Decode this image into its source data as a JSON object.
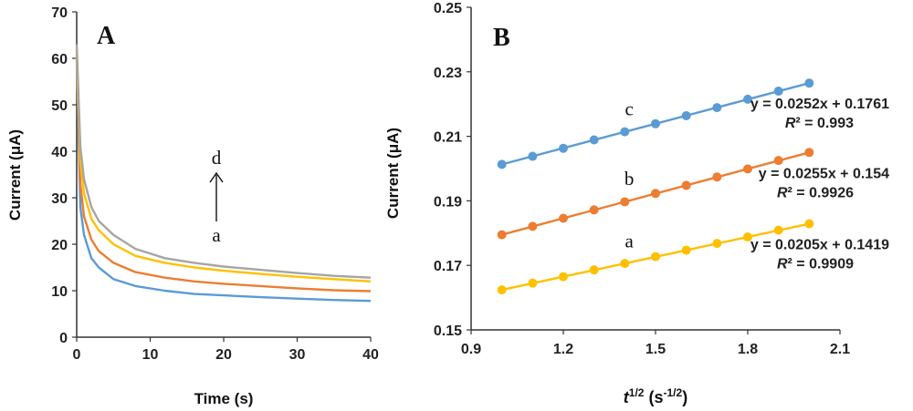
{
  "chart_data": [
    {
      "type": "line",
      "panel_label": "A",
      "xlabel": "Time (s)",
      "ylabel": "Current (μA)",
      "xlim": [
        0,
        40
      ],
      "ylim": [
        0,
        70
      ],
      "xticks": [
        "0",
        "10",
        "20",
        "30",
        "40"
      ],
      "yticks": [
        "0",
        "10",
        "20",
        "30",
        "40",
        "50",
        "60",
        "70"
      ],
      "grid": false,
      "colors": [
        "#5b9bd5",
        "#ed7d31",
        "#ffc000",
        "#a5a5a5"
      ],
      "arrow_labels": {
        "bottom": "a",
        "top": "d"
      },
      "series": [
        {
          "values": [
            [
              0,
              60
            ],
            [
              0.5,
              28
            ],
            [
              1,
              22
            ],
            [
              2,
              17
            ],
            [
              3,
              15
            ],
            [
              5,
              12.5
            ],
            [
              8,
              11
            ],
            [
              12,
              10
            ],
            [
              16,
              9.3
            ],
            [
              20,
              9
            ],
            [
              25,
              8.6
            ],
            [
              30,
              8.3
            ],
            [
              35,
              8
            ],
            [
              40,
              7.8
            ]
          ]
        },
        {
          "values": [
            [
              0,
              61
            ],
            [
              0.5,
              33
            ],
            [
              1,
              26
            ],
            [
              2,
              21
            ],
            [
              3,
              18.5
            ],
            [
              5,
              16
            ],
            [
              8,
              14
            ],
            [
              12,
              12.8
            ],
            [
              16,
              12
            ],
            [
              20,
              11.5
            ],
            [
              25,
              11
            ],
            [
              30,
              10.5
            ],
            [
              35,
              10.1
            ],
            [
              40,
              9.9
            ]
          ]
        },
        {
          "values": [
            [
              0,
              62
            ],
            [
              0.5,
              38
            ],
            [
              1,
              31
            ],
            [
              2,
              25.5
            ],
            [
              3,
              23
            ],
            [
              5,
              20
            ],
            [
              8,
              17.5
            ],
            [
              12,
              16
            ],
            [
              16,
              15
            ],
            [
              20,
              14.3
            ],
            [
              25,
              13.6
            ],
            [
              30,
              13
            ],
            [
              35,
              12.5
            ],
            [
              40,
              12
            ]
          ]
        },
        {
          "values": [
            [
              0,
              63
            ],
            [
              0.5,
              41
            ],
            [
              1,
              34
            ],
            [
              2,
              28
            ],
            [
              3,
              25
            ],
            [
              5,
              22
            ],
            [
              8,
              19
            ],
            [
              12,
              17
            ],
            [
              16,
              16
            ],
            [
              20,
              15.2
            ],
            [
              25,
              14.5
            ],
            [
              30,
              13.8
            ],
            [
              35,
              13.2
            ],
            [
              40,
              12.8
            ]
          ]
        }
      ]
    },
    {
      "type": "scatter",
      "panel_label": "B",
      "xlabel": "t",
      "xlabel_sup": "1/2",
      "xlabel_unit": " (s",
      "xlabel_unit_sup": "-1/2",
      "xlabel_close": ")",
      "ylabel": "Current (μA)",
      "xlim": [
        0.9,
        2.1
      ],
      "ylim": [
        0.15,
        0.25
      ],
      "xticks": [
        "0.9",
        "1.2",
        "1.5",
        "1.8",
        "2.1"
      ],
      "yticks": [
        "0.15",
        "0.17",
        "0.19",
        "0.21",
        "0.23",
        "0.25"
      ],
      "grid": false,
      "x": [
        1.0,
        1.1,
        1.2,
        1.3,
        1.4,
        1.5,
        1.6,
        1.7,
        1.8,
        1.9,
        2.0
      ],
      "series": [
        {
          "label": "c",
          "color": "#5b9bd5",
          "slope": 0.0252,
          "intercept": 0.1761,
          "equation": "y = 0.0252x + 0.1761",
          "r2_label": "R",
          "r2_value": "² = 0.993",
          "values": [
            0.2013,
            0.2038,
            0.2063,
            0.2089,
            0.2114,
            0.2139,
            0.2164,
            0.2189,
            0.2215,
            0.224,
            0.2265
          ]
        },
        {
          "label": "b",
          "color": "#ed7d31",
          "slope": 0.0255,
          "intercept": 0.154,
          "equation": "y = 0.0255x + 0.154",
          "r2_label": "R",
          "r2_value": "² = 0.9926",
          "values": [
            0.1795,
            0.1821,
            0.1846,
            0.1872,
            0.1897,
            0.1923,
            0.1948,
            0.1974,
            0.1999,
            0.2025,
            0.205
          ]
        },
        {
          "label": "a",
          "color": "#ffc000",
          "slope": 0.0205,
          "intercept": 0.1419,
          "equation": "y = 0.0205x + 0.1419",
          "r2_label": "R",
          "r2_value": "² = 0.9909",
          "values": [
            0.1624,
            0.1645,
            0.1665,
            0.1686,
            0.1706,
            0.1727,
            0.1747,
            0.1768,
            0.1788,
            0.1809,
            0.1829
          ]
        }
      ]
    }
  ]
}
